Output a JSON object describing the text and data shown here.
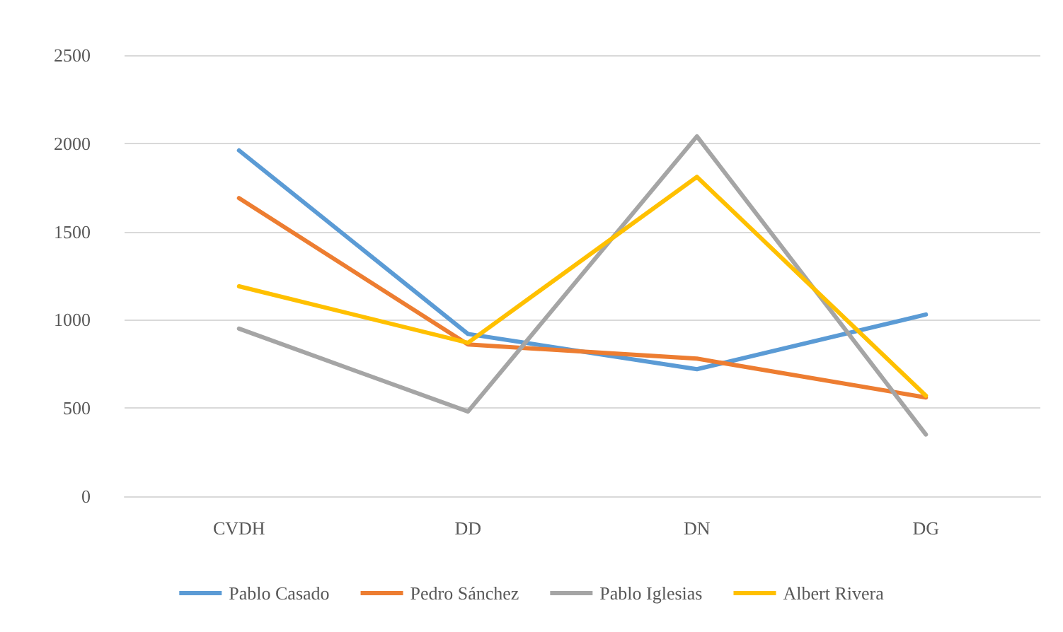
{
  "chart_data": {
    "type": "line",
    "categories": [
      "CVDH",
      "DD",
      "DN",
      "DG"
    ],
    "series": [
      {
        "name": "Pablo Casado",
        "color": "#5b9bd5",
        "values": [
          1960,
          920,
          720,
          1030
        ]
      },
      {
        "name": "Pedro Sánchez",
        "color": "#ed7d31",
        "values": [
          1690,
          860,
          780,
          560
        ]
      },
      {
        "name": "Pablo Iglesias",
        "color": "#a5a5a5",
        "values": [
          950,
          480,
          2040,
          350
        ]
      },
      {
        "name": "Albert Rivera",
        "color": "#ffc000",
        "values": [
          1190,
          870,
          1810,
          570
        ]
      }
    ],
    "ylim": [
      0,
      2500
    ],
    "yticks": [
      0,
      500,
      1000,
      1500,
      2000,
      2500
    ],
    "grid": "y",
    "legend": "bottom",
    "marker": "none",
    "line_style": "solid"
  }
}
